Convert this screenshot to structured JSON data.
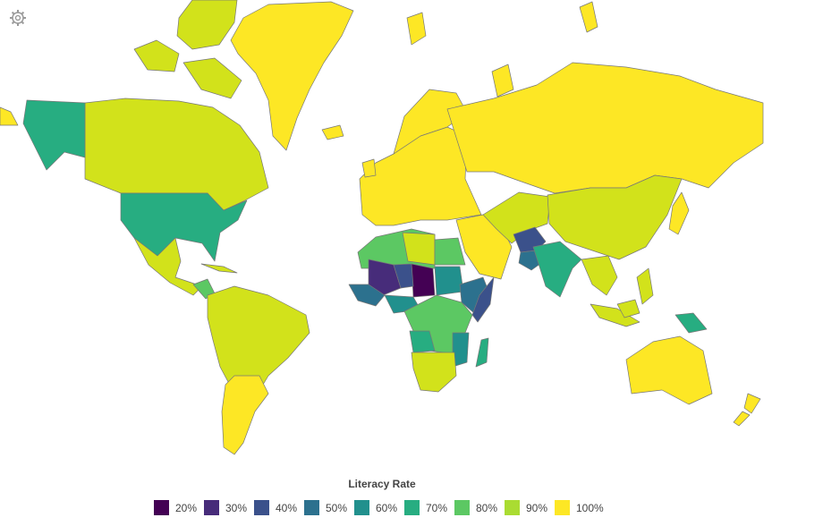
{
  "legend": {
    "title": "Literacy Rate",
    "items": [
      {
        "label": "20%",
        "color": "#440154"
      },
      {
        "label": "30%",
        "color": "#472c7a"
      },
      {
        "label": "40%",
        "color": "#3b518b"
      },
      {
        "label": "50%",
        "color": "#2c718e"
      },
      {
        "label": "60%",
        "color": "#21908d"
      },
      {
        "label": "70%",
        "color": "#27ad81"
      },
      {
        "label": "80%",
        "color": "#5cc863"
      },
      {
        "label": "90%",
        "color": "#aadc32"
      },
      {
        "label": "100%",
        "color": "#fde725"
      }
    ]
  }
}
